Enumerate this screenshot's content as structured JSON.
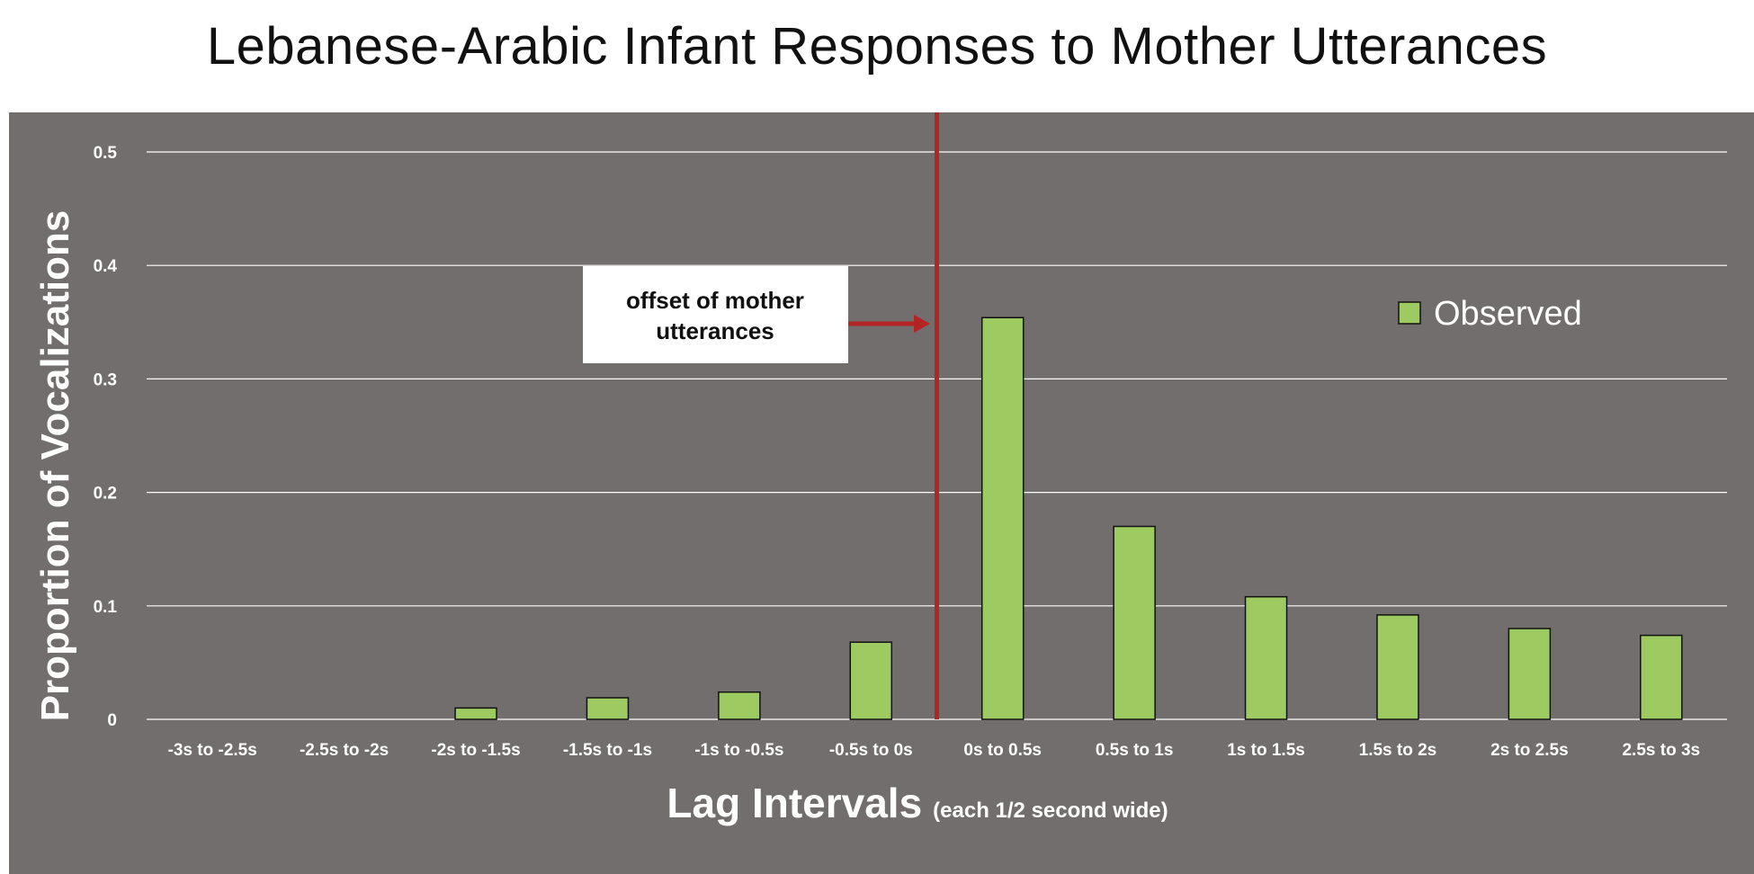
{
  "chart_data": {
    "type": "bar",
    "title": "Lebanese-Arabic Infant Responses to Mother Utterances",
    "xlabel": "Lag Intervals",
    "xlabel_note": "(each 1/2 second wide)",
    "ylabel": "Proportion of Vocalizations",
    "ylim": [
      0,
      0.5
    ],
    "yticks": [
      0,
      0.1,
      0.2,
      0.3,
      0.4,
      0.5
    ],
    "ytick_labels": [
      "0",
      "0.1",
      "0.2",
      "0.3",
      "0.4",
      "0.5"
    ],
    "grid": true,
    "legend_position": "top-right",
    "categories": [
      "-3s to -2.5s",
      "-2.5s to -2s",
      "-2s to -1.5s",
      "-1.5s to -1s",
      "-1s to -0.5s",
      "-0.5s to 0s",
      "0s to 0.5s",
      "0.5s to 1s",
      "1s to 1.5s",
      "1.5s to 2s",
      "2s to 2.5s",
      "2.5s to 3s"
    ],
    "series": [
      {
        "name": "Observed",
        "color": "#9dcb62",
        "values": [
          0,
          0,
          0.01,
          0.019,
          0.024,
          0.068,
          0.354,
          0.17,
          0.108,
          0.092,
          0.08,
          0.074
        ]
      }
    ],
    "annotation": {
      "text_line1": "offset of mother",
      "text_line2": "utterances",
      "marker_between": [
        "-0.5s to 0s",
        "0s to 0.5s"
      ],
      "marker_color": "#b52424"
    },
    "colors": {
      "panel_background": "#716e6d",
      "gridline": "#ffffff",
      "bar_outline": "#111111"
    }
  }
}
